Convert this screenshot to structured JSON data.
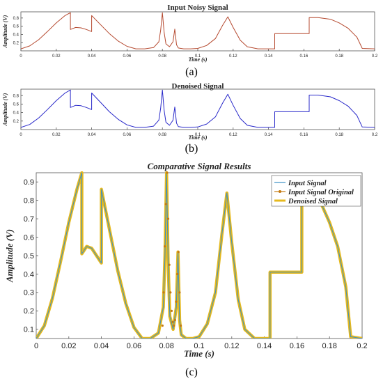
{
  "panels": [
    {
      "caption": "(a)",
      "chart_data": {
        "type": "line",
        "title": "Input Noisy Signal",
        "xlabel": "Time (s)",
        "ylabel": "Amplitude (V)",
        "xlim": [
          0,
          0.2
        ],
        "ylim": [
          0,
          0.95
        ],
        "grid": false,
        "xticks": [
          "0",
          "0.02",
          "0.04",
          "0.06",
          "0.08",
          "0.1",
          "0.12",
          "0.14",
          "0.16",
          "0.18",
          "0.2"
        ],
        "yticks": [
          "0.2",
          "0.4",
          "0.6",
          "0.8"
        ],
        "series": [
          {
            "color": "#b5492f",
            "x": [
              0,
              0.005,
              0.01,
              0.015,
              0.02,
              0.025,
              0.028,
              0.028,
              0.031,
              0.034,
              0.037,
              0.04,
              0.04,
              0.045,
              0.05,
              0.055,
              0.06,
              0.065,
              0.07,
              0.075,
              0.078,
              0.079,
              0.08,
              0.081,
              0.082,
              0.084,
              0.086,
              0.087,
              0.088,
              0.089,
              0.092,
              0.096,
              0.1,
              0.105,
              0.11,
              0.114,
              0.117,
              0.12,
              0.124,
              0.128,
              0.134,
              0.1435,
              0.1435,
              0.163,
              0.163,
              0.168,
              0.175,
              0.18,
              0.185,
              0.19,
              0.193,
              0.2
            ],
            "y": [
              0.05,
              0.12,
              0.27,
              0.47,
              0.68,
              0.86,
              0.93,
              0.52,
              0.57,
              0.56,
              0.52,
              0.47,
              0.86,
              0.64,
              0.42,
              0.24,
              0.11,
              0.05,
              0.05,
              0.08,
              0.22,
              0.5,
              0.93,
              0.45,
              0.17,
              0.1,
              0.22,
              0.53,
              0.15,
              0.07,
              0.05,
              0.05,
              0.06,
              0.13,
              0.3,
              0.62,
              0.83,
              0.57,
              0.26,
              0.1,
              0.05,
              0.05,
              0.42,
              0.42,
              0.81,
              0.81,
              0.77,
              0.68,
              0.55,
              0.33,
              0.06,
              0.05
            ]
          }
        ]
      }
    },
    {
      "caption": "(b)",
      "chart_data": {
        "type": "line",
        "title": "Denoised Signal",
        "xlabel": "Time (s)",
        "ylabel": "Amplitude (V)",
        "xlim": [
          0,
          0.2
        ],
        "ylim": [
          0,
          0.95
        ],
        "grid": false,
        "xticks": [
          "0",
          "0.02",
          "0.04",
          "0.06",
          "0.08",
          "0.1",
          "0.12",
          "0.14",
          "0.16",
          "0.18",
          "0.2"
        ],
        "yticks": [
          "0.2",
          "0.4",
          "0.6",
          "0.8"
        ],
        "series": [
          {
            "color": "#2727c9",
            "x": [
              0,
              0.005,
              0.01,
              0.015,
              0.02,
              0.025,
              0.028,
              0.028,
              0.031,
              0.034,
              0.037,
              0.04,
              0.04,
              0.045,
              0.05,
              0.055,
              0.06,
              0.065,
              0.07,
              0.075,
              0.078,
              0.079,
              0.08,
              0.081,
              0.082,
              0.084,
              0.086,
              0.087,
              0.088,
              0.089,
              0.092,
              0.096,
              0.1,
              0.105,
              0.11,
              0.114,
              0.117,
              0.12,
              0.124,
              0.128,
              0.134,
              0.1435,
              0.1435,
              0.163,
              0.163,
              0.168,
              0.175,
              0.18,
              0.185,
              0.19,
              0.193,
              0.2
            ],
            "y": [
              0.05,
              0.12,
              0.27,
              0.47,
              0.68,
              0.86,
              0.93,
              0.52,
              0.57,
              0.56,
              0.52,
              0.47,
              0.86,
              0.64,
              0.42,
              0.24,
              0.11,
              0.05,
              0.05,
              0.08,
              0.22,
              0.5,
              0.93,
              0.45,
              0.17,
              0.1,
              0.22,
              0.53,
              0.15,
              0.07,
              0.05,
              0.05,
              0.06,
              0.13,
              0.3,
              0.62,
              0.83,
              0.57,
              0.26,
              0.1,
              0.05,
              0.05,
              0.42,
              0.42,
              0.81,
              0.81,
              0.77,
              0.68,
              0.55,
              0.33,
              0.06,
              0.05
            ]
          }
        ]
      }
    },
    {
      "caption": "(c)",
      "chart_data": {
        "type": "line",
        "title": "Comparative Signal Results",
        "xlabel": "Time (s)",
        "ylabel": "Amplitude (V)",
        "xlim": [
          0,
          0.2
        ],
        "ylim": [
          0.05,
          0.95
        ],
        "grid": false,
        "legend": "top-right",
        "xticks": [
          "0",
          "0.02",
          "0.04",
          "0.06",
          "0.08",
          "0.1",
          "0.12",
          "0.14",
          "0.16",
          "0.18",
          "0.2"
        ],
        "yticks": [
          "0.1",
          "0.2",
          "0.3",
          "0.4",
          "0.5",
          "0.6",
          "0.7",
          "0.8",
          "0.9"
        ],
        "series": [
          {
            "name": "Input Signal",
            "color": "#3b8fc4",
            "style": "line",
            "x": [
              0,
              0.005,
              0.01,
              0.015,
              0.02,
              0.025,
              0.028,
              0.028,
              0.031,
              0.034,
              0.037,
              0.04,
              0.04,
              0.045,
              0.05,
              0.055,
              0.06,
              0.065,
              0.07,
              0.075,
              0.078,
              0.079,
              0.08,
              0.081,
              0.082,
              0.084,
              0.086,
              0.087,
              0.088,
              0.089,
              0.092,
              0.096,
              0.1,
              0.105,
              0.11,
              0.114,
              0.117,
              0.12,
              0.124,
              0.128,
              0.134,
              0.1435,
              0.1435,
              0.163,
              0.163,
              0.168,
              0.175,
              0.18,
              0.185,
              0.19,
              0.193,
              0.2
            ],
            "y": [
              0.05,
              0.12,
              0.27,
              0.47,
              0.68,
              0.86,
              0.95,
              0.51,
              0.55,
              0.54,
              0.5,
              0.46,
              0.86,
              0.64,
              0.42,
              0.24,
              0.11,
              0.05,
              0.05,
              0.08,
              0.22,
              0.5,
              0.95,
              0.45,
              0.17,
              0.1,
              0.22,
              0.52,
              0.15,
              0.07,
              0.05,
              0.05,
              0.06,
              0.13,
              0.3,
              0.62,
              0.84,
              0.57,
              0.26,
              0.1,
              0.05,
              0.05,
              0.41,
              0.41,
              0.82,
              0.82,
              0.78,
              0.68,
              0.55,
              0.33,
              0.06,
              0.05
            ]
          },
          {
            "name": "Input Signal Original",
            "color": "#c47a12",
            "style": "dots",
            "x": [
              0.0775,
              0.0782,
              0.0789,
              0.0796,
              0.0803,
              0.081,
              0.0817,
              0.0824,
              0.0831,
              0.0838,
              0.0845,
              0.0852,
              0.0859,
              0.0866,
              0.0873,
              0.088,
              0.0887
            ],
            "y": [
              0.12,
              0.3,
              0.55,
              0.78,
              0.95,
              0.7,
              0.45,
              0.3,
              0.2,
              0.14,
              0.12,
              0.15,
              0.25,
              0.4,
              0.52,
              0.3,
              0.12
            ]
          },
          {
            "name": "Denoised Signal",
            "color": "#e6b91e",
            "style": "thick",
            "x": [
              0,
              0.005,
              0.01,
              0.015,
              0.02,
              0.025,
              0.028,
              0.028,
              0.031,
              0.034,
              0.037,
              0.04,
              0.04,
              0.045,
              0.05,
              0.055,
              0.06,
              0.065,
              0.07,
              0.075,
              0.078,
              0.079,
              0.08,
              0.081,
              0.082,
              0.084,
              0.086,
              0.087,
              0.088,
              0.089,
              0.092,
              0.096,
              0.1,
              0.105,
              0.11,
              0.114,
              0.117,
              0.12,
              0.124,
              0.128,
              0.134,
              0.1435,
              0.1435,
              0.163,
              0.163,
              0.168,
              0.175,
              0.18,
              0.185,
              0.19,
              0.193,
              0.2
            ],
            "y": [
              0.05,
              0.12,
              0.27,
              0.47,
              0.68,
              0.86,
              0.95,
              0.51,
              0.55,
              0.54,
              0.5,
              0.46,
              0.86,
              0.64,
              0.42,
              0.24,
              0.11,
              0.05,
              0.05,
              0.08,
              0.22,
              0.5,
              0.95,
              0.45,
              0.17,
              0.1,
              0.22,
              0.52,
              0.15,
              0.07,
              0.05,
              0.05,
              0.06,
              0.13,
              0.3,
              0.62,
              0.84,
              0.57,
              0.26,
              0.1,
              0.05,
              0.05,
              0.41,
              0.41,
              0.82,
              0.82,
              0.78,
              0.68,
              0.55,
              0.33,
              0.06,
              0.05
            ]
          }
        ]
      }
    }
  ]
}
